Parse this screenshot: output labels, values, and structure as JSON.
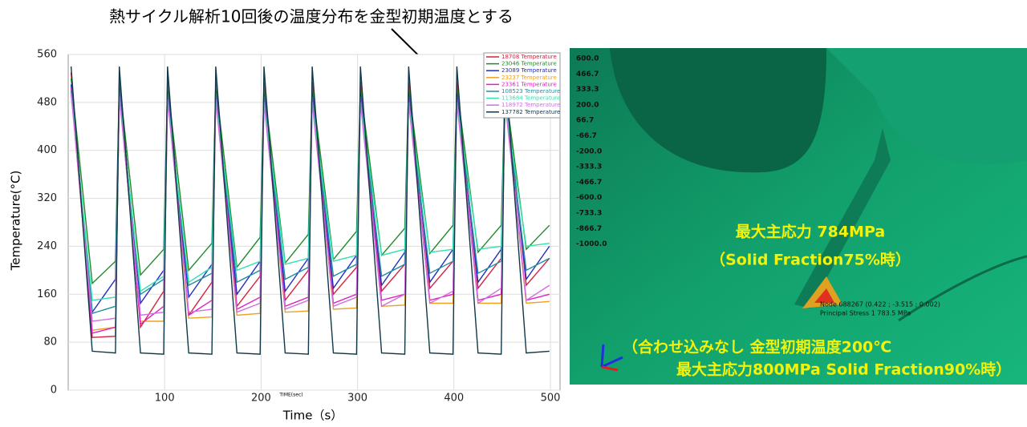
{
  "chart_data": {
    "type": "line",
    "annotation": "熱サイクル解析10回後の温度分布を金型初期温度とする",
    "y_label": "Temperature(°C)",
    "x_label": "Time（s）",
    "x_label_small": "TIME(sec)",
    "xlim": [
      0,
      510
    ],
    "ylim": [
      0,
      560
    ],
    "xticks": [
      100,
      200,
      300,
      400,
      500
    ],
    "yticks": [
      0,
      80,
      160,
      240,
      320,
      400,
      480,
      560
    ],
    "grid": true,
    "x": [
      3,
      25,
      49,
      53,
      75,
      99,
      103,
      125,
      149,
      153,
      175,
      199,
      203,
      225,
      249,
      253,
      275,
      299,
      303,
      325,
      349,
      353,
      375,
      399,
      403,
      425,
      449,
      453,
      475,
      499
    ],
    "series": [
      {
        "name": "18708 Temperature",
        "color": "#d62040",
        "values": [
          530,
          88,
          90,
          525,
          105,
          165,
          520,
          125,
          180,
          515,
          140,
          190,
          515,
          150,
          200,
          515,
          160,
          205,
          515,
          165,
          210,
          515,
          170,
          215,
          515,
          170,
          220,
          515,
          175,
          220
        ]
      },
      {
        "name": "23046 Temperature",
        "color": "#1f8a2a",
        "values": [
          520,
          178,
          215,
          515,
          192,
          235,
          510,
          200,
          245,
          510,
          205,
          255,
          505,
          212,
          260,
          505,
          218,
          265,
          505,
          225,
          270,
          505,
          228,
          275,
          505,
          230,
          275,
          505,
          235,
          275
        ]
      },
      {
        "name": "23089 Temperature",
        "color": "#2030c0",
        "values": [
          510,
          130,
          185,
          505,
          145,
          200,
          500,
          155,
          210,
          500,
          160,
          215,
          495,
          165,
          220,
          495,
          170,
          225,
          495,
          175,
          230,
          495,
          180,
          235,
          495,
          180,
          235,
          495,
          185,
          240
        ]
      },
      {
        "name": "23237 Temperature",
        "color": "#f0a020",
        "values": [
          500,
          100,
          105,
          495,
          115,
          115,
          490,
          120,
          122,
          490,
          125,
          128,
          485,
          130,
          132,
          485,
          135,
          137,
          485,
          140,
          142,
          485,
          145,
          145,
          485,
          145,
          145,
          485,
          145,
          148
        ]
      },
      {
        "name": "23361 Temperature",
        "color": "#e020c0",
        "values": [
          505,
          95,
          105,
          500,
          110,
          140,
          495,
          125,
          150,
          495,
          135,
          155,
          490,
          140,
          155,
          490,
          145,
          160,
          490,
          150,
          160,
          490,
          150,
          160,
          490,
          150,
          160,
          490,
          150,
          160
        ]
      },
      {
        "name": "108523 Temperature",
        "color": "#2090a0",
        "values": [
          500,
          128,
          140,
          495,
          160,
          185,
          490,
          175,
          195,
          490,
          180,
          200,
          485,
          185,
          205,
          485,
          190,
          210,
          485,
          190,
          210,
          485,
          195,
          215,
          485,
          195,
          215,
          485,
          200,
          220
        ]
      },
      {
        "name": "113684 Temperature",
        "color": "#30e0b0",
        "values": [
          495,
          150,
          155,
          490,
          165,
          190,
          485,
          180,
          205,
          485,
          200,
          215,
          480,
          210,
          220,
          480,
          215,
          225,
          480,
          225,
          235,
          480,
          230,
          235,
          480,
          235,
          240,
          480,
          240,
          245
        ]
      },
      {
        "name": "118972 Temperature",
        "color": "#d070e0",
        "values": [
          495,
          115,
          120,
          490,
          125,
          130,
          485,
          130,
          135,
          485,
          130,
          145,
          480,
          135,
          150,
          480,
          140,
          155,
          480,
          140,
          160,
          480,
          145,
          165,
          480,
          145,
          170,
          480,
          150,
          175
        ]
      },
      {
        "name": "137782 Temperature",
        "color": "#103848",
        "values": [
          540,
          65,
          62,
          540,
          62,
          60,
          540,
          62,
          60,
          540,
          62,
          60,
          540,
          62,
          60,
          540,
          62,
          60,
          540,
          62,
          60,
          540,
          62,
          60,
          540,
          62,
          60,
          540,
          62,
          65
        ]
      }
    ]
  },
  "contour_panel": {
    "scale_labels": [
      "600.0",
      "466.7",
      "333.3",
      "200.0",
      "66.7",
      "-66.7",
      "-200.0",
      "-333.3",
      "-466.7",
      "-600.0",
      "-733.3",
      "-866.7",
      "-1000.0"
    ],
    "result_line1": "最大主応力 784MPa",
    "result_line2": "（Solid Fraction75%時）",
    "node_line1": "Node 688267 (0.422 ; -3.515 ; 0.002)",
    "node_line2": "Principal Stress 1 783.5 MPa",
    "compare_line1": "（合わせ込みなし 金型初期温度200℃",
    "compare_line2": "最大主応力800MPa Solid Fraction90%時）"
  }
}
